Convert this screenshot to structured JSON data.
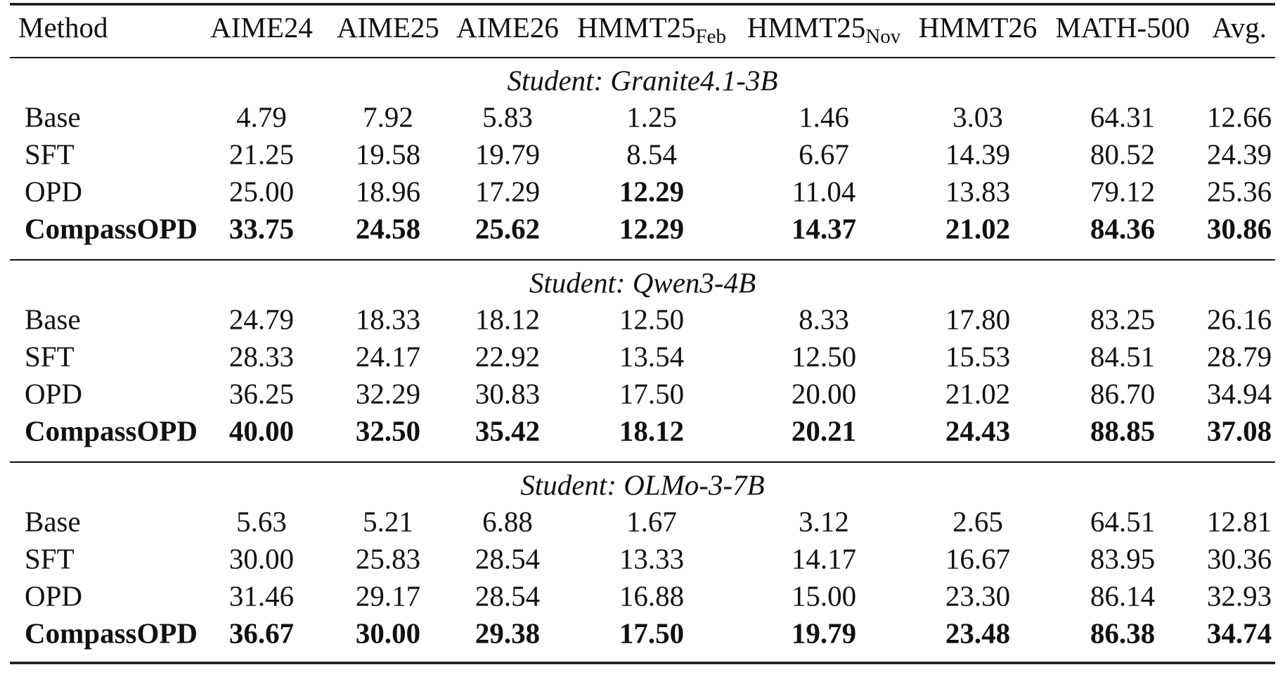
{
  "columns": [
    {
      "text": "Method"
    },
    {
      "text": "AIME24"
    },
    {
      "text": "AIME25"
    },
    {
      "text": "AIME26"
    },
    {
      "text": "HMMT25",
      "sub": "Feb"
    },
    {
      "text": "HMMT25",
      "sub": "Nov"
    },
    {
      "text": "HMMT26"
    },
    {
      "text": "MATH-500"
    },
    {
      "text": "Avg."
    }
  ],
  "groups": [
    {
      "title": "Student: Granite4.1-3B",
      "rows": [
        {
          "method": "Base",
          "cells": [
            "4.79",
            "7.92",
            "5.83",
            "1.25",
            "1.46",
            "3.03",
            "64.31",
            "12.66"
          ]
        },
        {
          "method": "SFT",
          "cells": [
            "21.25",
            "19.58",
            "19.79",
            "8.54",
            "6.67",
            "14.39",
            "80.52",
            "24.39"
          ]
        },
        {
          "method": "OPD",
          "cells": [
            "25.00",
            "18.96",
            "17.29",
            "12.29",
            "11.04",
            "13.83",
            "79.12",
            "25.36"
          ],
          "bold_cells": [
            3
          ]
        },
        {
          "method": "CompassOPD",
          "cells": [
            "33.75",
            "24.58",
            "25.62",
            "12.29",
            "14.37",
            "21.02",
            "84.36",
            "30.86"
          ],
          "bold": true
        }
      ]
    },
    {
      "title": "Student: Qwen3-4B",
      "rows": [
        {
          "method": "Base",
          "cells": [
            "24.79",
            "18.33",
            "18.12",
            "12.50",
            "8.33",
            "17.80",
            "83.25",
            "26.16"
          ]
        },
        {
          "method": "SFT",
          "cells": [
            "28.33",
            "24.17",
            "22.92",
            "13.54",
            "12.50",
            "15.53",
            "84.51",
            "28.79"
          ]
        },
        {
          "method": "OPD",
          "cells": [
            "36.25",
            "32.29",
            "30.83",
            "17.50",
            "20.00",
            "21.02",
            "86.70",
            "34.94"
          ]
        },
        {
          "method": "CompassOPD",
          "cells": [
            "40.00",
            "32.50",
            "35.42",
            "18.12",
            "20.21",
            "24.43",
            "88.85",
            "37.08"
          ],
          "bold": true
        }
      ]
    },
    {
      "title": "Student: OLMo-3-7B",
      "rows": [
        {
          "method": "Base",
          "cells": [
            "5.63",
            "5.21",
            "6.88",
            "1.67",
            "3.12",
            "2.65",
            "64.51",
            "12.81"
          ]
        },
        {
          "method": "SFT",
          "cells": [
            "30.00",
            "25.83",
            "28.54",
            "13.33",
            "14.17",
            "16.67",
            "83.95",
            "30.36"
          ]
        },
        {
          "method": "OPD",
          "cells": [
            "31.46",
            "29.17",
            "28.54",
            "16.88",
            "15.00",
            "23.30",
            "86.14",
            "32.93"
          ]
        },
        {
          "method": "CompassOPD",
          "cells": [
            "36.67",
            "30.00",
            "29.38",
            "17.50",
            "19.79",
            "23.48",
            "86.38",
            "34.74"
          ],
          "bold": true
        }
      ]
    }
  ]
}
